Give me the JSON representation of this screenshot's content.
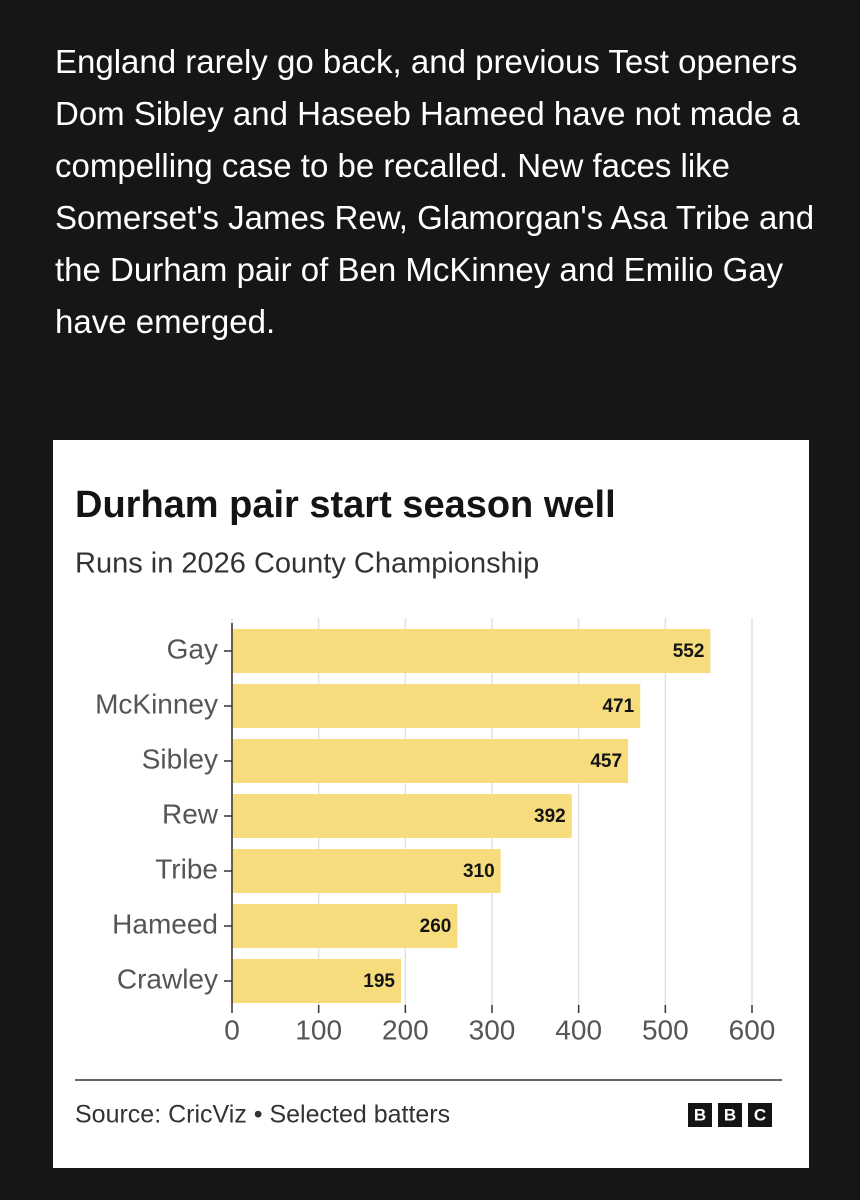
{
  "paragraph": "England rarely go back, and previous Test openers Dom Sibley and Haseeb Hameed have not made a compelling case to be recalled. New faces like Somerset's James Rew, Glamorgan's Asa Tribe and the Durham pair of Ben McKinney and Emilio Gay have emerged.",
  "chart_data": {
    "type": "bar",
    "orientation": "horizontal",
    "title": "Durham pair start season well",
    "subtitle": "Runs in 2026 County Championship",
    "categories": [
      "Gay",
      "McKinney",
      "Sibley",
      "Rew",
      "Tribe",
      "Hameed",
      "Crawley"
    ],
    "values": [
      552,
      471,
      457,
      392,
      310,
      260,
      195
    ],
    "color": "#f6dc7c",
    "xlim": [
      0,
      600
    ],
    "xticks": [
      0,
      100,
      200,
      300,
      400,
      500,
      600
    ],
    "grid": true,
    "source": "Source: CricViz • Selected batters",
    "logo": [
      "B",
      "B",
      "C"
    ]
  }
}
